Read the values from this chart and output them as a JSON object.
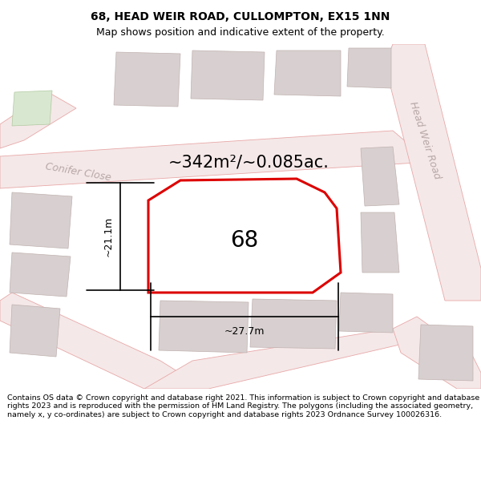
{
  "title": "68, HEAD WEIR ROAD, CULLOMPTON, EX15 1NN",
  "subtitle": "Map shows position and indicative extent of the property.",
  "area_label": "~342m²/~0.085ac.",
  "property_number": "68",
  "dim_width": "~27.7m",
  "dim_height": "~21.1m",
  "footer": "Contains OS data © Crown copyright and database right 2021. This information is subject to Crown copyright and database rights 2023 and is reproduced with the permission of HM Land Registry. The polygons (including the associated geometry, namely x, y co-ordinates) are subject to Crown copyright and database rights 2023 Ordnance Survey 100026316.",
  "bg_color": "#faf7f7",
  "road_fill": "#f5e8e8",
  "road_edge": "#e8a8a8",
  "building_fill": "#d8d0d0",
  "building_edge": "#c0b0b0",
  "property_fill": "#ffffff",
  "property_edge": "#dd0000",
  "label_color": "#b8a8a8",
  "figsize": [
    6.0,
    6.25
  ],
  "dpi": 100,
  "title_fontsize": 10,
  "subtitle_fontsize": 9,
  "area_fontsize": 15,
  "street_fontsize": 9,
  "property_num_fontsize": 20,
  "dim_fontsize": 9,
  "footer_fontsize": 6.8
}
